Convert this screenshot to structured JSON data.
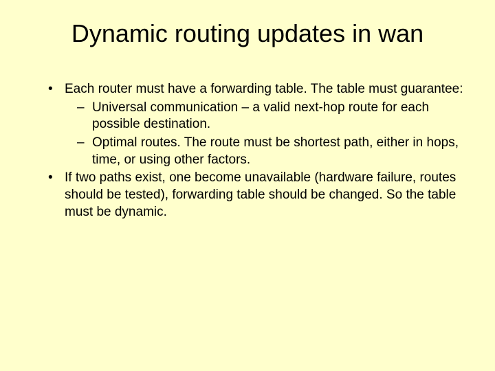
{
  "slide": {
    "title": "Dynamic routing updates in wan",
    "background_color": "#ffffcc",
    "text_color": "#000000",
    "title_fontsize": 36,
    "body_fontsize": 19,
    "font_family": "Arial",
    "bullets": {
      "b1": "Each router must have a forwarding table. The table must guarantee:",
      "b1_sub": {
        "s1": "Universal communication – a valid next-hop route for each possible destination.",
        "s2": "Optimal routes.  The route must be shortest path, either in hops, time, or using other factors."
      },
      "b2": "If two paths exist, one become unavailable (hardware failure, routes should be tested), forwarding table should be changed. So the table must be dynamic."
    }
  }
}
